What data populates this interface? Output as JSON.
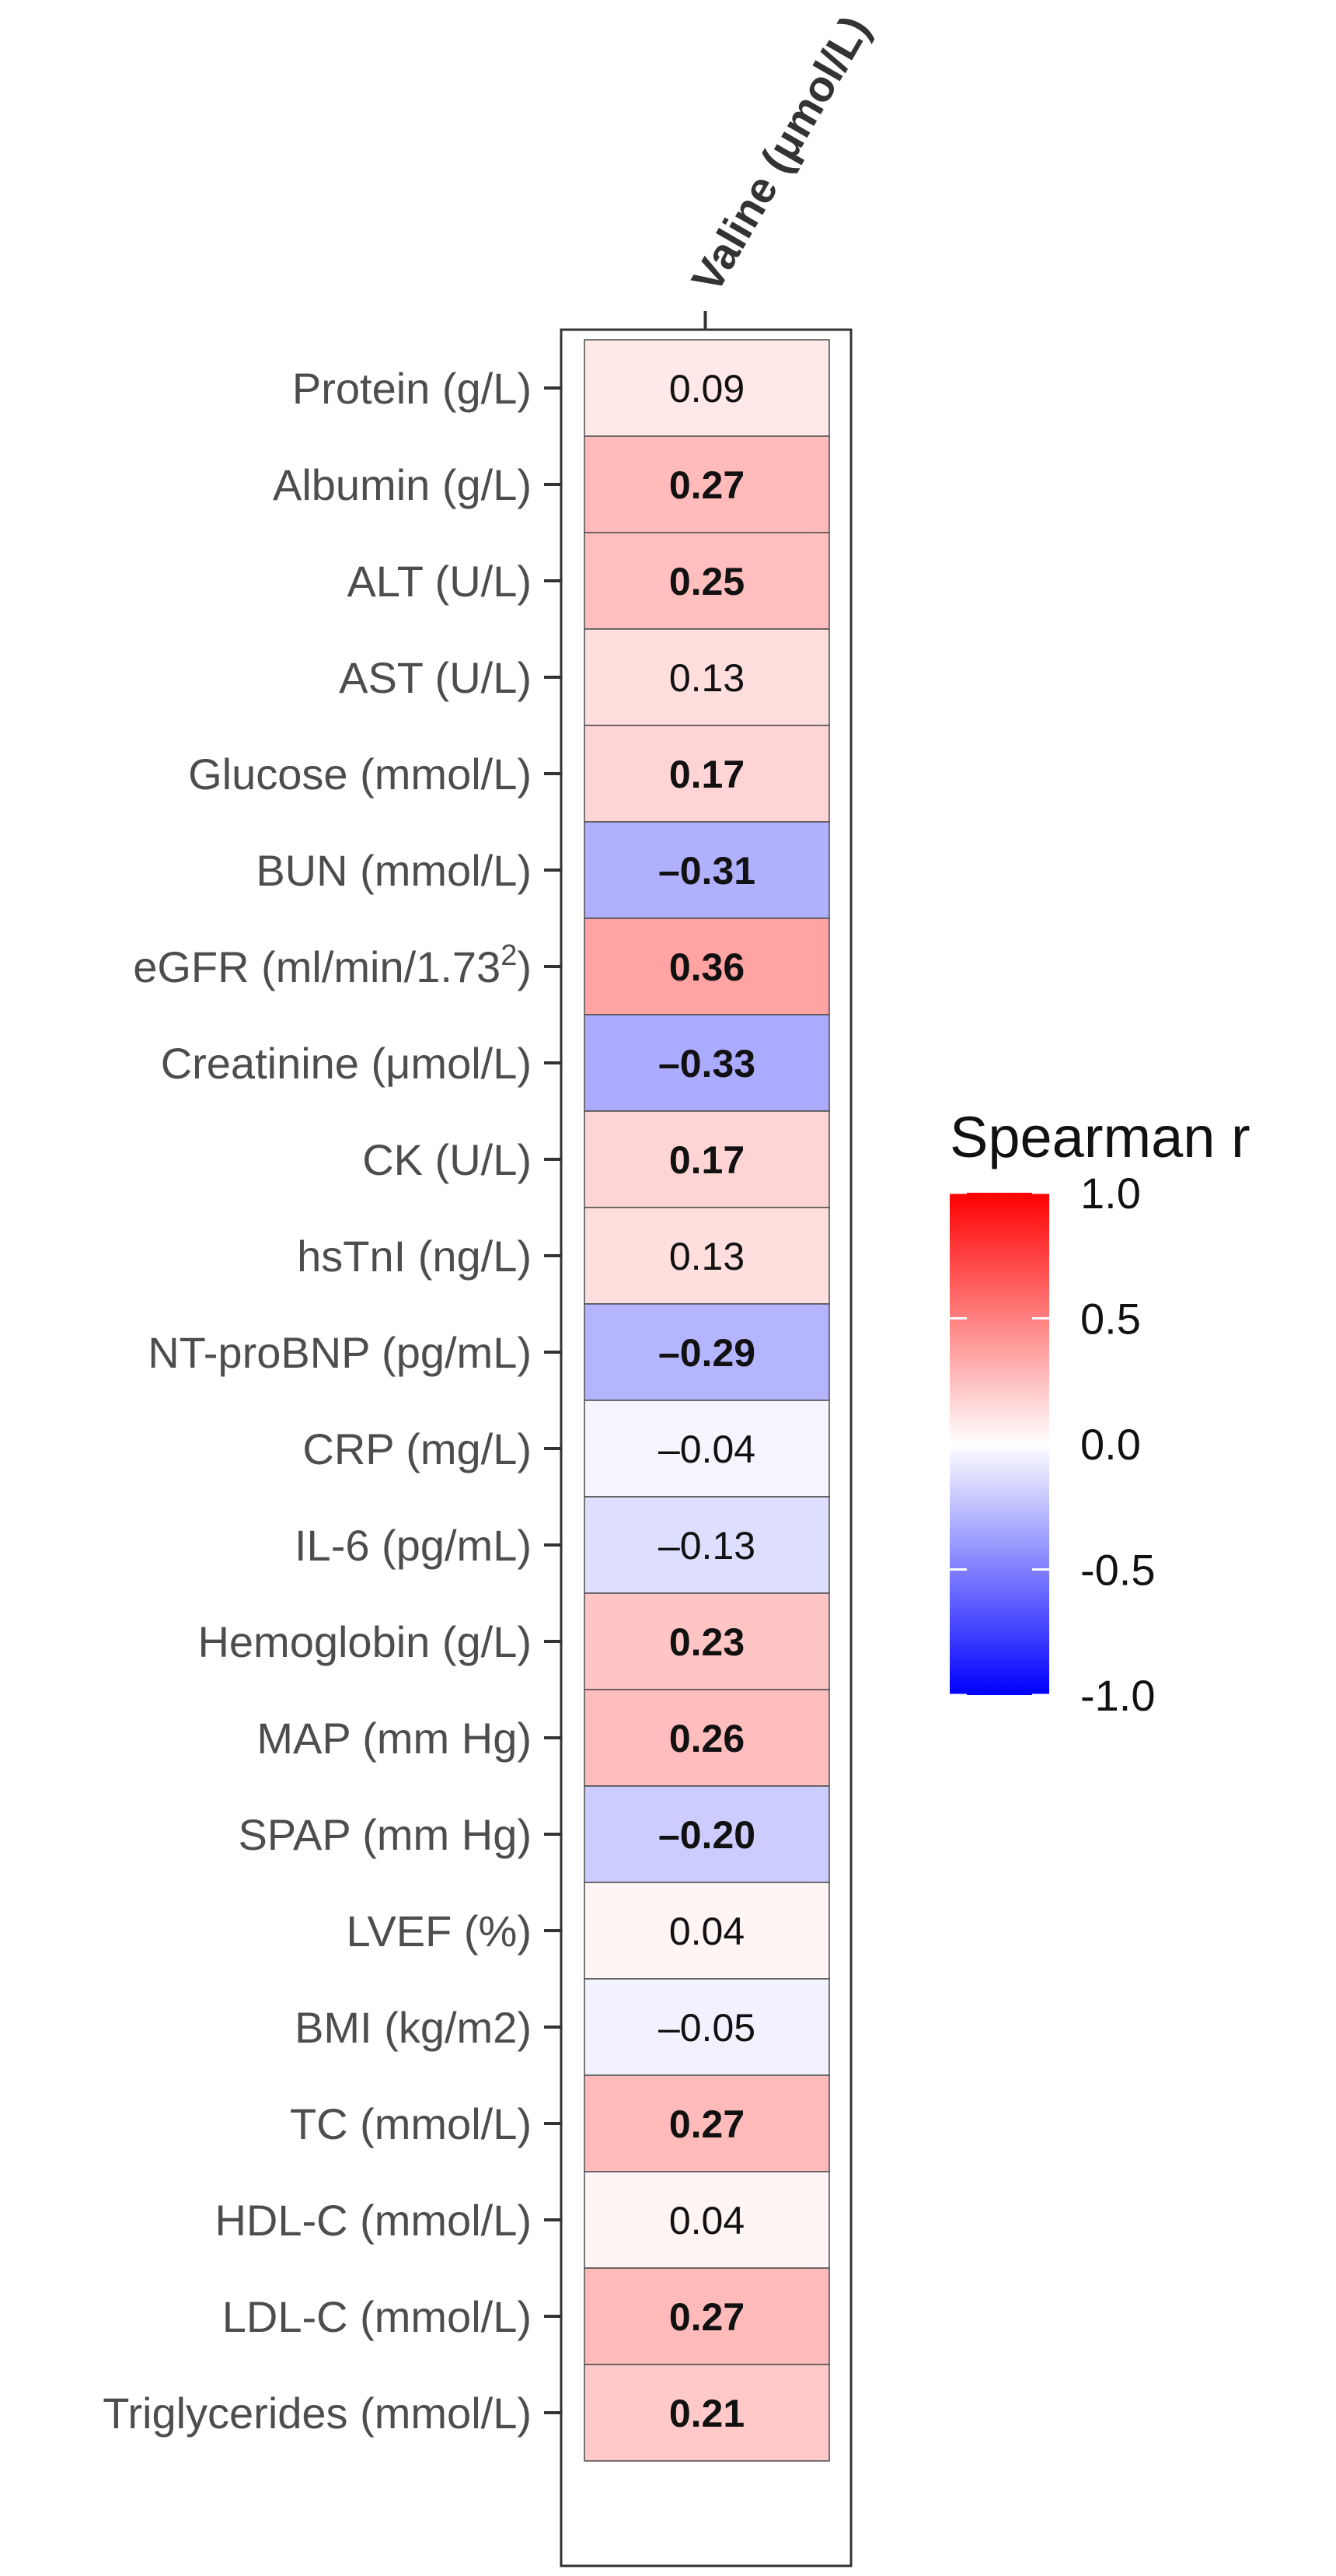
{
  "chart_data": {
    "type": "heatmap",
    "column_label": "Valine (μmol/L)",
    "legend": {
      "title": "Spearman r",
      "ticks": [
        "1.0",
        "0.5",
        "0.0",
        "-0.5",
        "-1.0"
      ],
      "range": [
        -1.0,
        1.0
      ],
      "low_color": "#0000ff",
      "mid_color": "#ffffff",
      "high_color": "#ff0000"
    },
    "rows": [
      {
        "label": "Protein (g/L)",
        "value": 0.09,
        "text": "0.09",
        "significant": false
      },
      {
        "label": "Albumin (g/L)",
        "value": 0.27,
        "text": "0.27",
        "significant": true
      },
      {
        "label": "ALT (U/L)",
        "value": 0.25,
        "text": "0.25",
        "significant": true
      },
      {
        "label": "AST (U/L)",
        "value": 0.13,
        "text": "0.13",
        "significant": false
      },
      {
        "label": "Glucose (mmol/L)",
        "value": 0.17,
        "text": "0.17",
        "significant": true
      },
      {
        "label": "BUN (mmol/L)",
        "value": -0.31,
        "text": "–0.31",
        "significant": true
      },
      {
        "label": "eGFR (ml/min/1.73",
        "superscript": "2",
        "label_suffix": ")",
        "value": 0.36,
        "text": "0.36",
        "significant": true
      },
      {
        "label": "Creatinine (μmol/L)",
        "value": -0.33,
        "text": "–0.33",
        "significant": true
      },
      {
        "label": "CK (U/L)",
        "value": 0.17,
        "text": "0.17",
        "significant": true
      },
      {
        "label": "hsTnI (ng/L)",
        "value": 0.13,
        "text": "0.13",
        "significant": false
      },
      {
        "label": "NT-proBNP (pg/mL)",
        "value": -0.29,
        "text": "–0.29",
        "significant": true
      },
      {
        "label": "CRP (mg/L)",
        "value": -0.04,
        "text": "–0.04",
        "significant": false
      },
      {
        "label": "IL-6 (pg/mL)",
        "value": -0.13,
        "text": "–0.13",
        "significant": false
      },
      {
        "label": "Hemoglobin (g/L)",
        "value": 0.23,
        "text": "0.23",
        "significant": true
      },
      {
        "label": "MAP (mm Hg)",
        "value": 0.26,
        "text": "0.26",
        "significant": true
      },
      {
        "label": "SPAP (mm Hg)",
        "value": -0.2,
        "text": "–0.20",
        "significant": true
      },
      {
        "label": "LVEF (%)",
        "value": 0.04,
        "text": "0.04",
        "significant": false
      },
      {
        "label": "BMI (kg/m2)",
        "value": -0.05,
        "text": "–0.05",
        "significant": false
      },
      {
        "label": "TC (mmol/L)",
        "value": 0.27,
        "text": "0.27",
        "significant": true
      },
      {
        "label": "HDL-C (mmol/L)",
        "value": 0.04,
        "text": "0.04",
        "significant": false
      },
      {
        "label": "LDL-C (mmol/L)",
        "value": 0.27,
        "text": "0.27",
        "significant": true
      },
      {
        "label": "Triglycerides (mmol/L)",
        "value": 0.21,
        "text": "0.21",
        "significant": true
      }
    ]
  }
}
